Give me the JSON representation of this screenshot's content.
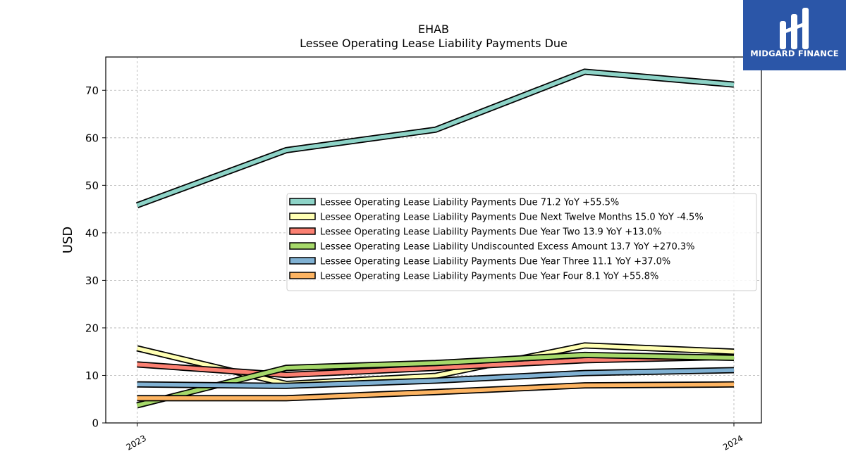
{
  "header": {
    "ticker": "EHAB",
    "subtitle": "Lessee Operating Lease Liability Payments Due"
  },
  "logo": {
    "text": "MIDGARD FINANCE",
    "background": "#2b56a8"
  },
  "chart_data": {
    "type": "line",
    "title": "EHAB",
    "subtitle": "Lessee Operating Lease Liability Payments Due",
    "xlabel": "",
    "ylabel": "USD",
    "x": [
      0,
      1,
      2,
      3,
      4
    ],
    "xticks": [
      {
        "label": "2023",
        "index": 0
      },
      {
        "label": "2024",
        "index": 4
      }
    ],
    "ylim": [
      0,
      77
    ],
    "yticks": [
      0,
      10,
      20,
      30,
      40,
      50,
      60,
      70
    ],
    "grid": true,
    "legend_position": "center-right",
    "series": [
      {
        "name": "Lessee Operating Lease Liability Payments Due  71.2 YoY +55.5%",
        "color": "#8dd3c7",
        "values": [
          45.8,
          57.4,
          61.7,
          73.9,
          71.2
        ]
      },
      {
        "name": "Lessee Operating Lease Liability Payments Due Next Twelve Months  15.0 YoY -4.5%",
        "color": "#ffffb3",
        "values": [
          15.7,
          8.2,
          9.9,
          16.3,
          15.0
        ]
      },
      {
        "name": "Lessee Operating Lease Liability Payments Due Year Two  13.9 YoY +13.0%",
        "color": "#fb8072",
        "values": [
          12.3,
          10.1,
          11.6,
          13.2,
          13.9
        ]
      },
      {
        "name": "Lessee Operating Lease Liability Undiscounted Excess Amount  13.7 YoY +270.3%",
        "color": "#a6d96a",
        "values": [
          3.7,
          11.6,
          12.6,
          14.3,
          13.7
        ]
      },
      {
        "name": "Lessee Operating Lease Liability Payments Due Year Three  11.1 YoY +37.0%",
        "color": "#80b1d3",
        "values": [
          8.1,
          7.8,
          8.9,
          10.5,
          11.1
        ]
      },
      {
        "name": "Lessee Operating Lease Liability Payments Due Year Four  8.1 YoY +55.8%",
        "color": "#fdb462",
        "values": [
          5.2,
          5.2,
          6.5,
          7.9,
          8.1
        ]
      }
    ]
  }
}
